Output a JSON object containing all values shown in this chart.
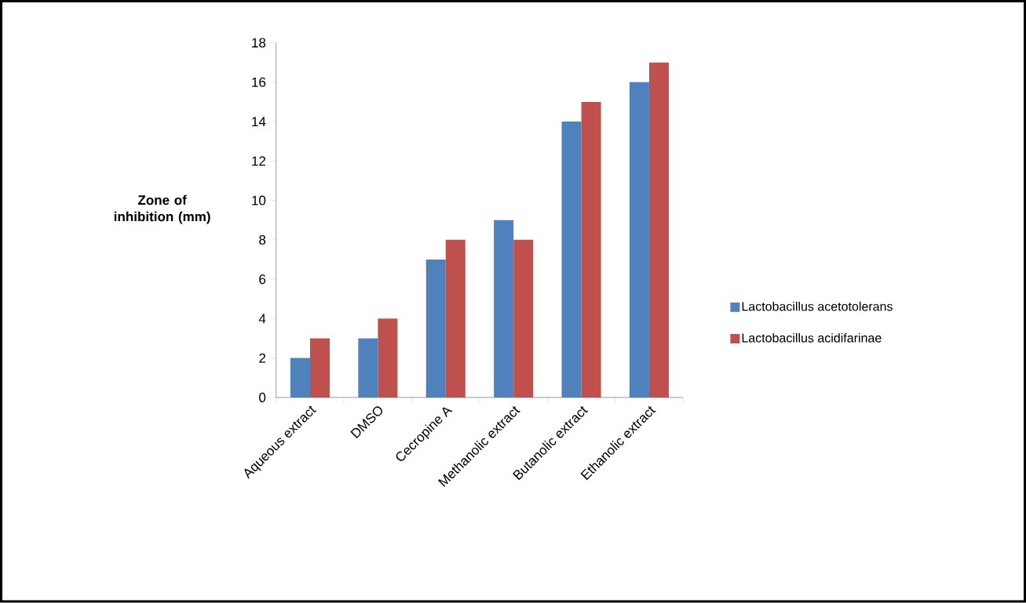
{
  "chart_data": {
    "type": "bar",
    "ylabel": "Zone of inhibition (mm)",
    "categories": [
      "Aqueous extract",
      "DMSO",
      "Cecropine A",
      "Methanolic extract",
      "Butanolic extract",
      "Ethanolic extract"
    ],
    "series": [
      {
        "name": "Lactobacillus acetotolerans",
        "color": "#4f81bd",
        "values": [
          2,
          3,
          7,
          9,
          14,
          16
        ]
      },
      {
        "name": "Lactobacillus acidifarinae",
        "color": "#c0504d",
        "values": [
          3,
          4,
          8,
          8,
          15,
          17
        ]
      }
    ],
    "ylim": [
      0,
      18
    ],
    "yticks": [
      0,
      2,
      4,
      6,
      8,
      10,
      12,
      14,
      16,
      18
    ],
    "legend": "right",
    "grid": false
  }
}
